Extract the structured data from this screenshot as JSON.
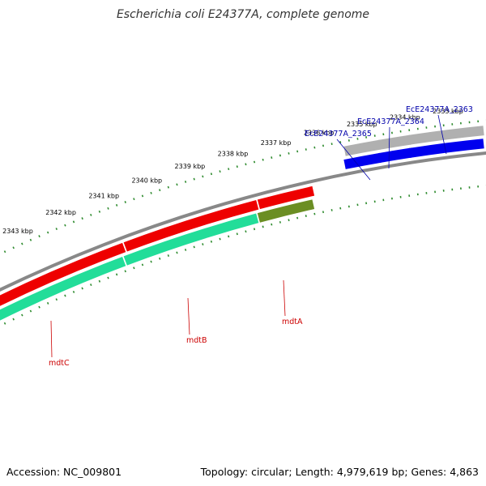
{
  "title": "Escherichia coli E24377A, complete genome",
  "footer": {
    "accession": "Accession: NC_009801",
    "summary": "Topology: circular; Length: 4,979,619 bp; Genes: 4,863"
  },
  "colors": {
    "backbone": "#888888",
    "ticks": "#2e8b2e",
    "forward_cds": "#0000ee",
    "reverse_cds": "#ee0000",
    "reverse_gene": "#22dd99",
    "gene_grey": "#b0b0b0",
    "olive": "#6b8e23",
    "label_blue": "#0000aa",
    "label_red": "#cc0000"
  },
  "scale_labels": [
    "2343 kbp",
    "2342 kbp",
    "2341 kbp",
    "2340 kbp",
    "2339 kbp",
    "2338 kbp",
    "2337 kbp",
    "2336 kbp",
    "2335 kbp",
    "2334 kbp",
    "2333 kbp"
  ],
  "scale_positions_kbp": [
    2343,
    2342,
    2341,
    2340,
    2339,
    2338,
    2337,
    2336,
    2335,
    2334,
    2333
  ],
  "forward_genes": [
    {
      "name": "EcE24377A_2365",
      "start_kbp": 2335.4,
      "end_kbp": 2334.6
    },
    {
      "name": "EcE24377A_2364",
      "start_kbp": 2334.6,
      "end_kbp": 2333.9
    },
    {
      "name": "EcE24377A_2363",
      "start_kbp": 2333.9,
      "end_kbp": 2332.2
    }
  ],
  "reverse_genes": [
    {
      "name": "mdtA",
      "start_kbp": 2337.4,
      "end_kbp": 2336.1
    },
    {
      "name": "mdtB",
      "start_kbp": 2340.5,
      "end_kbp": 2337.4
    },
    {
      "name": "mdtC",
      "start_kbp": 2343.8,
      "end_kbp": 2340.5
    }
  ]
}
